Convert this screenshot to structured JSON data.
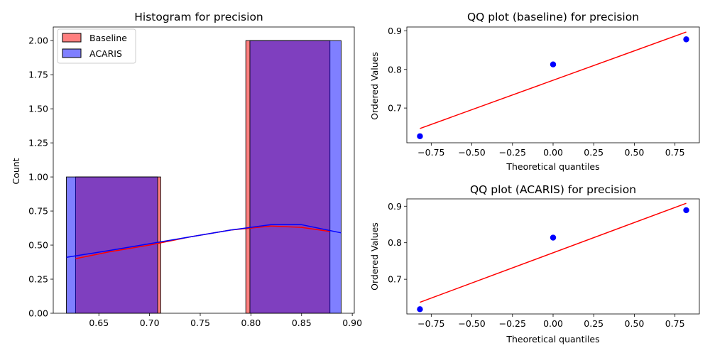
{
  "chart_data": [
    {
      "type": "histogram",
      "title": "Histogram for precision",
      "xlabel": "",
      "ylabel": "Count",
      "xlim": [
        0.605,
        0.902
      ],
      "ylim": [
        0,
        2.1
      ],
      "xticks": [
        0.65,
        0.7,
        0.75,
        0.8,
        0.85,
        0.9
      ],
      "xtick_labels": [
        "0.65",
        "0.70",
        "0.75",
        "0.80",
        "0.85",
        "0.90"
      ],
      "yticks": [
        0,
        0.25,
        0.5,
        0.75,
        1.0,
        1.25,
        1.5,
        1.75,
        2.0
      ],
      "ytick_labels": [
        "0.00",
        "0.25",
        "0.50",
        "0.75",
        "1.00",
        "1.25",
        "1.50",
        "1.75",
        "2.00"
      ],
      "legend": {
        "position": "upper-left",
        "entries": [
          "Baseline",
          "ACARIS"
        ]
      },
      "series": [
        {
          "name": "Baseline",
          "color": "#ff0000",
          "bins": [
            {
              "x0": 0.627,
              "x1": 0.711,
              "count": 1
            },
            {
              "x0": 0.711,
              "x1": 0.795,
              "count": 0
            },
            {
              "x0": 0.795,
              "x1": 0.878,
              "count": 2
            }
          ],
          "kde": {
            "x": [
              0.627,
              0.66,
              0.7,
              0.74,
              0.78,
              0.82,
              0.85,
              0.878
            ],
            "y": [
              0.4,
              0.45,
              0.5,
              0.56,
              0.61,
              0.64,
              0.63,
              0.6
            ]
          }
        },
        {
          "name": "ACARIS",
          "color": "#0000ff",
          "bins": [
            {
              "x0": 0.618,
              "x1": 0.708,
              "count": 1
            },
            {
              "x0": 0.708,
              "x1": 0.799,
              "count": 0
            },
            {
              "x0": 0.799,
              "x1": 0.889,
              "count": 2
            }
          ],
          "kde": {
            "x": [
              0.618,
              0.66,
              0.7,
              0.74,
              0.78,
              0.82,
              0.85,
              0.889
            ],
            "y": [
              0.41,
              0.46,
              0.51,
              0.56,
              0.61,
              0.65,
              0.65,
              0.59
            ]
          }
        }
      ]
    },
    {
      "type": "scatter",
      "title": "QQ plot (baseline) for precision",
      "xlabel": "Theoretical quantiles",
      "ylabel": "Ordered Values",
      "xlim": [
        -0.9,
        0.9
      ],
      "ylim": [
        0.61,
        0.91
      ],
      "xticks": [
        -0.75,
        -0.5,
        -0.25,
        0,
        0.25,
        0.5,
        0.75
      ],
      "xtick_labels": [
        "−0.75",
        "−0.50",
        "−0.25",
        "0.00",
        "0.25",
        "0.50",
        "0.75"
      ],
      "yticks": [
        0.7,
        0.8,
        0.9
      ],
      "ytick_labels": [
        "0.7",
        "0.8",
        "0.9"
      ],
      "points": {
        "x": [
          -0.8193,
          0.0,
          0.8193
        ],
        "y": [
          0.627,
          0.813,
          0.878
        ],
        "color": "#0000ff"
      },
      "fit_line": {
        "x": [
          -0.8193,
          0.8193
        ],
        "y": [
          0.647,
          0.897
        ],
        "color": "#ff0000"
      }
    },
    {
      "type": "scatter",
      "title": "QQ plot (ACARIS) for precision",
      "xlabel": "Theoretical quantiles",
      "ylabel": "Ordered Values",
      "xlim": [
        -0.9,
        0.9
      ],
      "ylim": [
        0.605,
        0.92
      ],
      "xticks": [
        -0.75,
        -0.5,
        -0.25,
        0,
        0.25,
        0.5,
        0.75
      ],
      "xtick_labels": [
        "−0.75",
        "−0.50",
        "−0.25",
        "0.00",
        "0.25",
        "0.50",
        "0.75"
      ],
      "yticks": [
        0.7,
        0.8,
        0.9
      ],
      "ytick_labels": [
        "0.7",
        "0.8",
        "0.9"
      ],
      "points": {
        "x": [
          -0.8193,
          0.0,
          0.8193
        ],
        "y": [
          0.618,
          0.814,
          0.889
        ],
        "color": "#0000ff"
      },
      "fit_line": {
        "x": [
          -0.8193,
          0.8193
        ],
        "y": [
          0.637,
          0.908
        ],
        "color": "#ff0000"
      }
    }
  ]
}
